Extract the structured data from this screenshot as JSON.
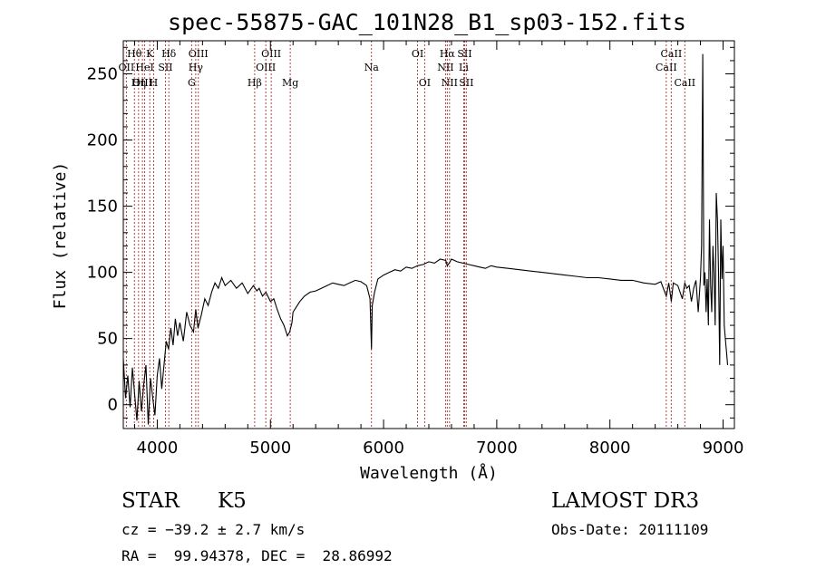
{
  "chart_data": {
    "type": "line",
    "title": "spec-55875-GAC_101N28_B1_sp03-152.fits",
    "xlabel": "Wavelength (Å)",
    "ylabel": "Flux (relative)",
    "xlim": [
      3700,
      9100
    ],
    "ylim": [
      -18,
      275
    ],
    "xticks": [
      4000,
      5000,
      6000,
      7000,
      8000,
      9000
    ],
    "yticks": [
      0,
      50,
      100,
      150,
      200,
      250
    ],
    "xtick_labels": [
      "4000",
      "5000",
      "6000",
      "7000",
      "8000",
      "9000"
    ],
    "ytick_labels": [
      "0",
      "50",
      "100",
      "150",
      "200",
      "250"
    ],
    "grid": false,
    "series": [
      {
        "x": [
          3700,
          3720,
          3740,
          3760,
          3780,
          3800,
          3820,
          3840,
          3860,
          3880,
          3900,
          3920,
          3940,
          3960,
          3980,
          4000,
          4020,
          4040,
          4060,
          4080,
          4100,
          4120,
          4140,
          4160,
          4180,
          4200,
          4230,
          4260,
          4290,
          4320,
          4340,
          4360,
          4390,
          4420,
          4450,
          4480,
          4510,
          4540,
          4570,
          4600,
          4650,
          4700,
          4750,
          4800,
          4850,
          4880,
          4900,
          4930,
          4960,
          5000,
          5030,
          5060,
          5090,
          5120,
          5150,
          5170,
          5190,
          5200,
          5230,
          5260,
          5300,
          5350,
          5400,
          5450,
          5500,
          5550,
          5600,
          5650,
          5700,
          5750,
          5800,
          5850,
          5880,
          5893,
          5900,
          5920,
          5950,
          6000,
          6050,
          6100,
          6150,
          6200,
          6250,
          6300,
          6350,
          6400,
          6450,
          6500,
          6550,
          6563,
          6580,
          6600,
          6650,
          6700,
          6750,
          6800,
          6850,
          6900,
          6950,
          7000,
          7100,
          7200,
          7300,
          7400,
          7500,
          7600,
          7700,
          7800,
          7900,
          8000,
          8100,
          8200,
          8300,
          8400,
          8450,
          8498,
          8520,
          8542,
          8560,
          8600,
          8640,
          8662,
          8680,
          8700,
          8720,
          8740,
          8760,
          8780,
          8800,
          8810,
          8820,
          8830,
          8840,
          8850,
          8860,
          8870,
          8880,
          8890,
          8900,
          8910,
          8920,
          8930,
          8940,
          8950,
          8960,
          8970,
          8980,
          8990,
          9000,
          9010,
          9020,
          9030,
          9040
        ],
        "y": [
          35,
          5,
          22,
          -2,
          28,
          8,
          -12,
          18,
          -5,
          15,
          30,
          -15,
          20,
          5,
          -8,
          22,
          35,
          12,
          30,
          48,
          42,
          58,
          45,
          65,
          52,
          62,
          48,
          70,
          60,
          55,
          72,
          58,
          68,
          80,
          75,
          85,
          92,
          88,
          96,
          90,
          94,
          88,
          92,
          84,
          90,
          86,
          88,
          82,
          85,
          78,
          80,
          72,
          65,
          60,
          52,
          55,
          62,
          70,
          74,
          78,
          82,
          85,
          86,
          88,
          90,
          92,
          91,
          90,
          92,
          94,
          93,
          90,
          80,
          42,
          75,
          85,
          95,
          98,
          100,
          102,
          101,
          104,
          103,
          105,
          106,
          108,
          107,
          110,
          109,
          105,
          107,
          110,
          108,
          107,
          106,
          105,
          104,
          103,
          105,
          104,
          103,
          102,
          101,
          100,
          99,
          98,
          97,
          96,
          96,
          95,
          94,
          94,
          92,
          91,
          93,
          82,
          92,
          78,
          92,
          90,
          80,
          92,
          88,
          90,
          78,
          88,
          94,
          70,
          96,
          120,
          265,
          90,
          100,
          70,
          95,
          60,
          140,
          90,
          70,
          120,
          100,
          60,
          160,
          140,
          100,
          30,
          140,
          95,
          120,
          60,
          50,
          40,
          30
        ],
        "color": "#000000"
      }
    ],
    "lines": [
      {
        "label": "Hθ",
        "x": 3798,
        "row": 1
      },
      {
        "label": "OII",
        "x": 3727,
        "row": 2
      },
      {
        "label": "OIII",
        "x": 3869,
        "row": 3
      },
      {
        "label": "K",
        "x": 3934,
        "row": 1
      },
      {
        "label": "HeI",
        "x": 3889,
        "row": 2
      },
      {
        "label": "Hη",
        "x": 3835,
        "row": 3
      },
      {
        "label": "Hδ",
        "x": 4102,
        "row": 1
      },
      {
        "label": "SII",
        "x": 4072,
        "row": 2
      },
      {
        "label": "H",
        "x": 3968,
        "row": 3
      },
      {
        "label": "OIII",
        "x": 4363,
        "row": 1
      },
      {
        "label": "Hγ",
        "x": 4340,
        "row": 2
      },
      {
        "label": "G",
        "x": 4304,
        "row": 3
      },
      {
        "label": "OIII",
        "x": 5007,
        "row": 1
      },
      {
        "label": "OIII",
        "x": 4959,
        "row": 2
      },
      {
        "label": "Hβ",
        "x": 4861,
        "row": 3
      },
      {
        "label": "Mg",
        "x": 5175,
        "row": 3
      },
      {
        "label": "Na",
        "x": 5893,
        "row": 2
      },
      {
        "label": "OI",
        "x": 6300,
        "row": 1
      },
      {
        "label": "OI",
        "x": 6363,
        "row": 3
      },
      {
        "label": "Hα",
        "x": 6563,
        "row": 1
      },
      {
        "label": "SII",
        "x": 6716,
        "row": 1
      },
      {
        "label": "NII",
        "x": 6548,
        "row": 2
      },
      {
        "label": "Li",
        "x": 6708,
        "row": 2
      },
      {
        "label": "NII",
        "x": 6583,
        "row": 3
      },
      {
        "label": "SII",
        "x": 6731,
        "row": 3
      },
      {
        "label": "CaII",
        "x": 8542,
        "row": 1
      },
      {
        "label": "CaII",
        "x": 8498,
        "row": 2
      },
      {
        "label": "CaII",
        "x": 8662,
        "row": 3
      }
    ],
    "line_color": "#b03030"
  },
  "info": {
    "class": "STAR",
    "subclass": "K5",
    "survey": "LAMOST DR3",
    "cz": "cz = −39.2 ± 2.7 km/s",
    "obs_date": "Obs-Date: 20111109",
    "radec": "RA =  99.94378, DEC =  28.86992"
  }
}
